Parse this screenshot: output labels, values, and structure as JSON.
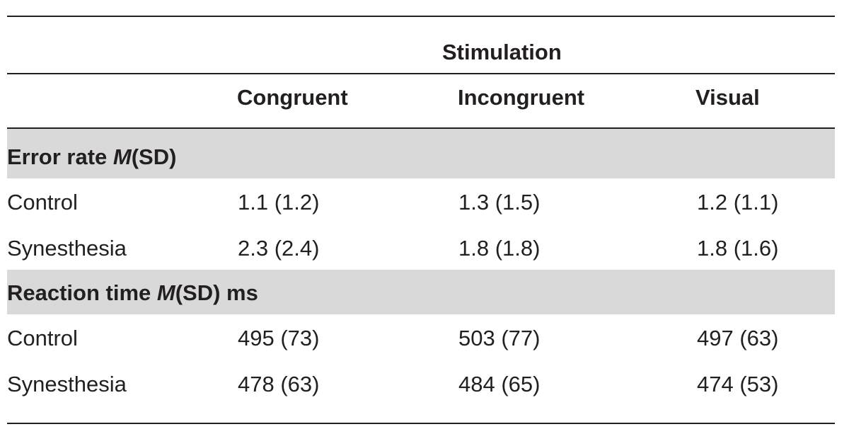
{
  "table": {
    "group_header": "Stimulation",
    "columns": [
      "Congruent",
      "Incongruent",
      "Visual"
    ],
    "sections": [
      {
        "title_prefix": "Error rate ",
        "title_italic": "M",
        "title_suffix": "(SD)",
        "rows": [
          {
            "label": "Control",
            "values": [
              "1.1 (1.2)",
              "1.3 (1.5)",
              "1.2 (1.1)"
            ]
          },
          {
            "label": "Synesthesia",
            "values": [
              "2.3 (2.4)",
              "1.8 (1.8)",
              "1.8 (1.6)"
            ]
          }
        ]
      },
      {
        "title_prefix": "Reaction time ",
        "title_italic": "M",
        "title_suffix": "(SD) ms",
        "rows": [
          {
            "label": "Control",
            "values": [
              "495 (73)",
              "503 (77)",
              "497 (63)"
            ]
          },
          {
            "label": "Synesthesia",
            "values": [
              "478 (63)",
              "484 (65)",
              "474 (53)"
            ]
          }
        ]
      }
    ]
  }
}
